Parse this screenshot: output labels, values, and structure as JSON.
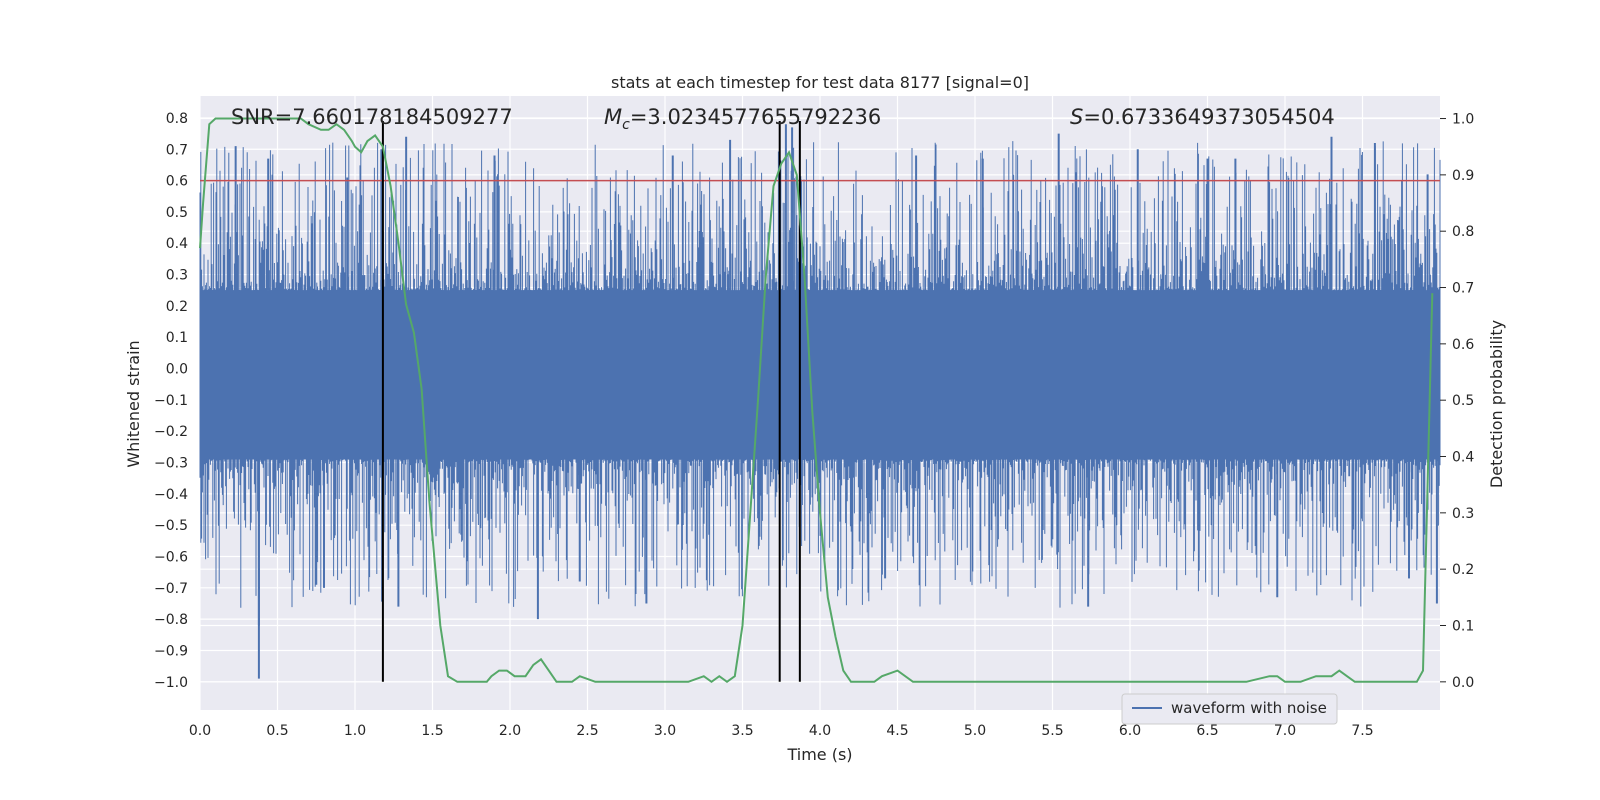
{
  "chart_data": {
    "type": "line",
    "title": "stats at each timestep for test data 8177 [signal=0]",
    "xlabel": "Time (s)",
    "ylabel_left": "Whitened strain",
    "ylabel_right": "Detection probability",
    "xlim": [
      0.0,
      8.0
    ],
    "ylim_left": [
      -1.09,
      0.87
    ],
    "ylim_right": [
      -0.05,
      1.04
    ],
    "grid": true,
    "legend_placement": "lower-right",
    "x_ticks": [
      "0.0",
      "0.5",
      "1.0",
      "1.5",
      "2.0",
      "2.5",
      "3.0",
      "3.5",
      "4.0",
      "4.5",
      "5.0",
      "5.5",
      "6.0",
      "6.5",
      "7.0",
      "7.5"
    ],
    "y_left_ticks": [
      "0.8",
      "0.7",
      "0.6",
      "0.5",
      "0.4",
      "0.3",
      "0.2",
      "0.1",
      "0.0",
      "−0.1",
      "−0.2",
      "−0.3",
      "−0.4",
      "−0.5",
      "−0.6",
      "−0.7",
      "−0.8",
      "−0.9",
      "−1.0"
    ],
    "y_right_ticks": [
      "1.0",
      "0.9",
      "0.8",
      "0.7",
      "0.6",
      "0.5",
      "0.4",
      "0.3",
      "0.2",
      "0.1",
      "0.0"
    ],
    "annotations": {
      "snr": "SNR=7.660178184509277",
      "mc_symbol": "M",
      "mc_sub": "c",
      "mc_value": "=3.0234577655792236",
      "s_symbol": "S",
      "s_value": "=0.6733649373054504"
    },
    "series": [
      {
        "name": "waveform with noise",
        "color": "#4c72b0",
        "axis": "left",
        "kind": "noise",
        "typical_range": [
          -0.29,
          0.25
        ],
        "typical_amplitude": 0.28,
        "spikes": [
          {
            "x": 0.38,
            "y": -0.99
          },
          {
            "x": 0.38,
            "y": -0.82
          },
          {
            "x": 0.23,
            "y": 0.71
          },
          {
            "x": 0.44,
            "y": 0.67
          },
          {
            "x": 0.75,
            "y": -0.69
          },
          {
            "x": 0.8,
            "y": -0.7
          },
          {
            "x": 0.95,
            "y": 0.61
          },
          {
            "x": 1.33,
            "y": 0.74
          },
          {
            "x": 1.17,
            "y": 0.7
          },
          {
            "x": 1.28,
            "y": -0.76
          },
          {
            "x": 2.18,
            "y": -0.8
          },
          {
            "x": 2.88,
            "y": -0.75
          },
          {
            "x": 3.05,
            "y": 0.68
          },
          {
            "x": 3.42,
            "y": 0.73
          },
          {
            "x": 3.78,
            "y": 0.78
          },
          {
            "x": 3.82,
            "y": 0.77
          },
          {
            "x": 4.42,
            "y": -0.67
          },
          {
            "x": 4.62,
            "y": 0.68
          },
          {
            "x": 5.54,
            "y": 0.75
          },
          {
            "x": 5.73,
            "y": -0.76
          },
          {
            "x": 6.05,
            "y": 0.7
          },
          {
            "x": 6.5,
            "y": 0.67
          },
          {
            "x": 6.68,
            "y": 0.67
          },
          {
            "x": 6.95,
            "y": -0.73
          },
          {
            "x": 7.3,
            "y": 0.74
          },
          {
            "x": 7.58,
            "y": 0.72
          },
          {
            "x": 7.8,
            "y": -0.67
          },
          {
            "x": 7.92,
            "y": 0.62
          },
          {
            "x": 7.98,
            "y": -0.75
          },
          {
            "x": 1.9,
            "y": 0.68
          },
          {
            "x": 2.45,
            "y": -0.68
          },
          {
            "x": 5.05,
            "y": 0.67
          }
        ]
      },
      {
        "name": "",
        "color": "#55a868",
        "axis": "right",
        "x": [
          0.0,
          0.02,
          0.06,
          0.1,
          0.15,
          0.3,
          0.5,
          0.65,
          0.7,
          0.78,
          0.83,
          0.88,
          0.93,
          0.98,
          1.0,
          1.04,
          1.08,
          1.13,
          1.18,
          1.23,
          1.28,
          1.33,
          1.38,
          1.43,
          1.48,
          1.55,
          1.6,
          1.66,
          1.73,
          1.8,
          1.85,
          1.88,
          1.93,
          1.98,
          2.03,
          2.1,
          2.15,
          2.2,
          2.25,
          2.3,
          2.35,
          2.4,
          2.45,
          2.55,
          2.65,
          2.75,
          2.85,
          2.95,
          3.05,
          3.15,
          3.25,
          3.3,
          3.35,
          3.4,
          3.45,
          3.5,
          3.55,
          3.6,
          3.65,
          3.7,
          3.75,
          3.8,
          3.85,
          3.9,
          3.95,
          4.0,
          4.05,
          4.1,
          4.15,
          4.2,
          4.25,
          4.3,
          4.35,
          4.4,
          4.5,
          4.6,
          4.8,
          5.0,
          5.5,
          6.0,
          6.25,
          6.5,
          6.75,
          6.9,
          6.95,
          7.0,
          7.1,
          7.2,
          7.3,
          7.35,
          7.4,
          7.45,
          7.5,
          7.6,
          7.7,
          7.8,
          7.85,
          7.89,
          7.95
        ],
        "y": [
          0.77,
          0.85,
          0.99,
          1.0,
          1.0,
          1.0,
          1.0,
          1.0,
          0.99,
          0.98,
          0.98,
          0.99,
          0.98,
          0.96,
          0.95,
          0.94,
          0.96,
          0.97,
          0.95,
          0.88,
          0.78,
          0.67,
          0.62,
          0.52,
          0.32,
          0.1,
          0.01,
          0.0,
          0.0,
          0.0,
          0.0,
          0.01,
          0.02,
          0.02,
          0.01,
          0.01,
          0.03,
          0.04,
          0.02,
          0.0,
          0.0,
          0.0,
          0.01,
          0.0,
          0.0,
          0.0,
          0.0,
          0.0,
          0.0,
          0.0,
          0.01,
          0.0,
          0.01,
          0.0,
          0.01,
          0.1,
          0.3,
          0.5,
          0.72,
          0.88,
          0.92,
          0.94,
          0.9,
          0.72,
          0.48,
          0.3,
          0.15,
          0.08,
          0.02,
          0.0,
          0.0,
          0.0,
          0.0,
          0.01,
          0.02,
          0.0,
          0.0,
          0.0,
          0.0,
          0.0,
          0.0,
          0.0,
          0.0,
          0.01,
          0.01,
          0.0,
          0.0,
          0.01,
          0.01,
          0.02,
          0.01,
          0.0,
          0.0,
          0.0,
          0.0,
          0.0,
          0.0,
          0.02,
          0.69
        ]
      },
      {
        "name": "",
        "color": "#c44e52",
        "axis": "left",
        "kind": "hline",
        "y": 0.6
      }
    ],
    "vertical_lines": [
      1.18,
      3.74,
      3.87
    ],
    "vline_color": "#000000"
  }
}
